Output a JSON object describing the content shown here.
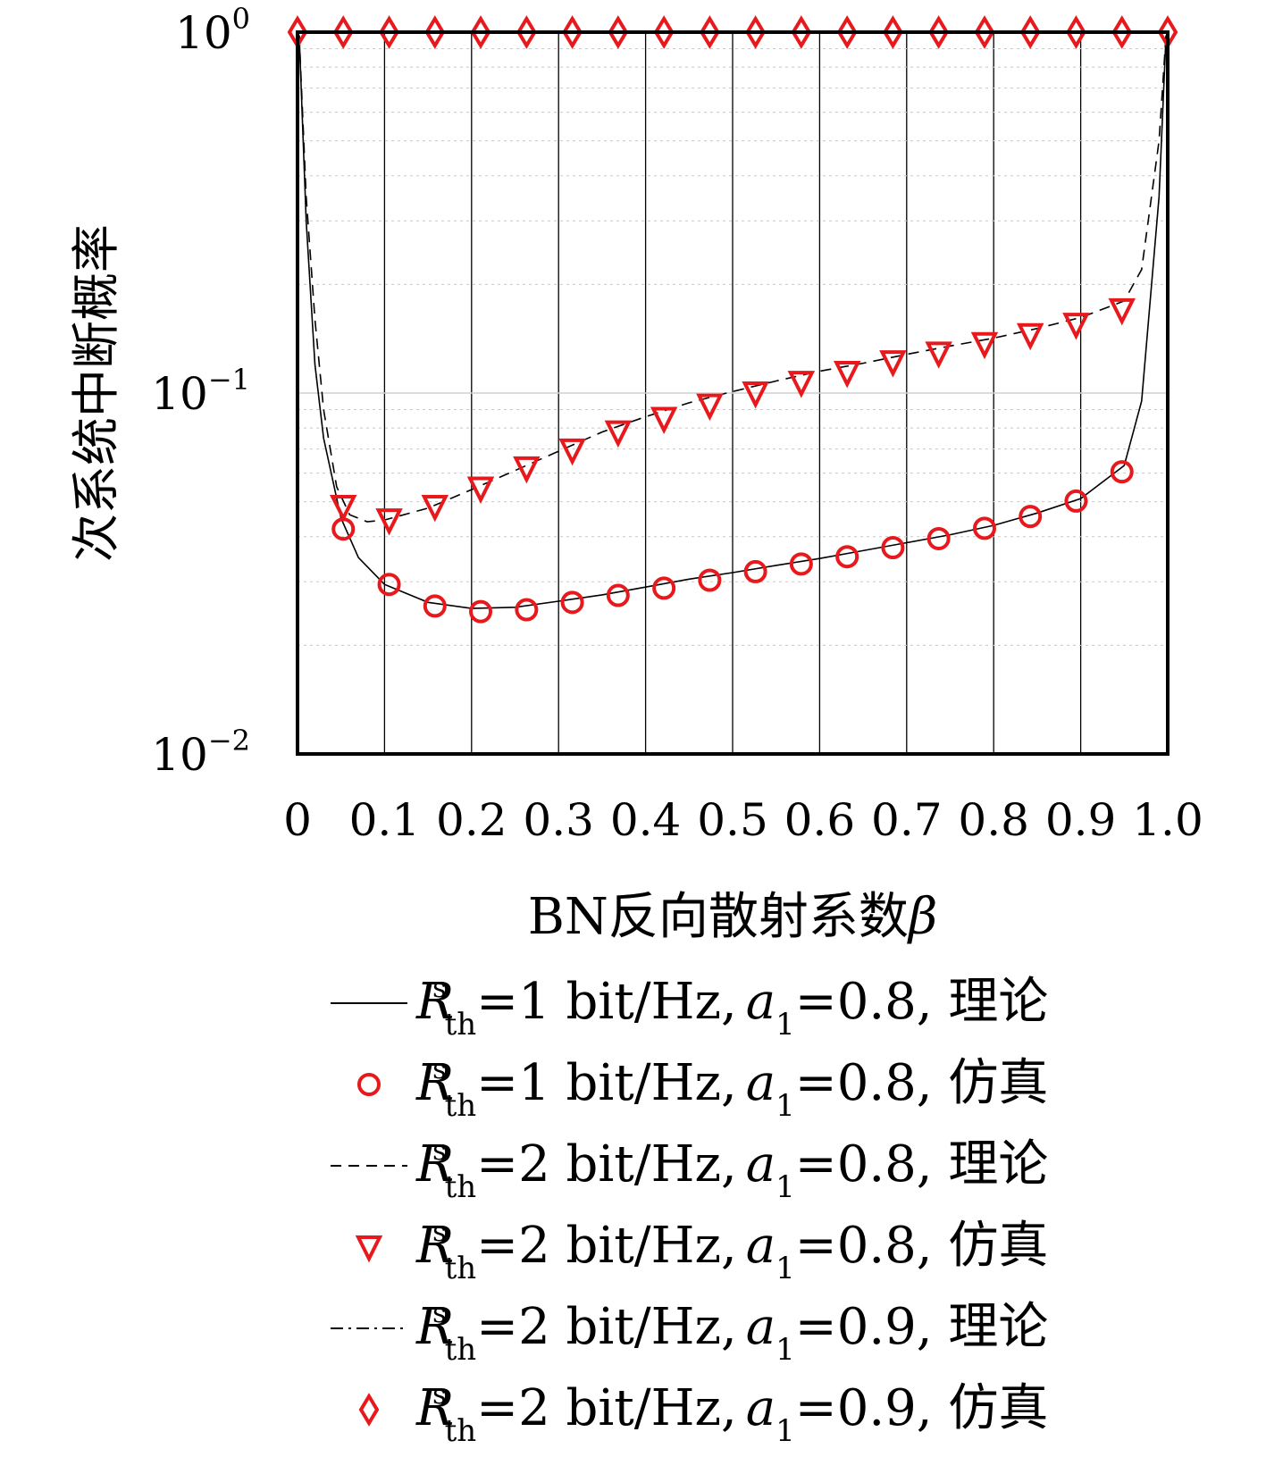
{
  "chart_data": {
    "type": "line",
    "title": "",
    "xlabel": "BN反向散射系数β",
    "ylabel": "次系统中断概率",
    "yscale": "log",
    "xlim": [
      0,
      1.0
    ],
    "ylim": [
      0.01,
      1
    ],
    "grid": "vertical lines at x ticks; dotted horizontal minor lines",
    "x_ticks": [
      "0",
      "0.1",
      "0.2",
      "0.3",
      "0.4",
      "0.5",
      "0.6",
      "0.7",
      "0.8",
      "0.9",
      "1.0"
    ],
    "y_ticks": [
      {
        "base": "10",
        "exp": "0",
        "value": 1
      },
      {
        "base": "10",
        "exp": "−1",
        "value": 0.1
      },
      {
        "base": "10",
        "exp": "−2",
        "value": 0.01
      }
    ],
    "series": [
      {
        "name": "Rsth=1 bit/Hz, a1=0.8, 理论",
        "style": "solid",
        "color": "#000000",
        "points": [
          [
            0.002,
            0.98
          ],
          [
            0.01,
            0.3
          ],
          [
            0.02,
            0.12
          ],
          [
            0.03,
            0.075
          ],
          [
            0.05,
            0.045
          ],
          [
            0.07,
            0.035
          ],
          [
            0.1,
            0.0295
          ],
          [
            0.15,
            0.0263
          ],
          [
            0.2,
            0.0253
          ],
          [
            0.25,
            0.0255
          ],
          [
            0.3,
            0.0265
          ],
          [
            0.35,
            0.0276
          ],
          [
            0.4,
            0.029
          ],
          [
            0.45,
            0.0305
          ],
          [
            0.5,
            0.0318
          ],
          [
            0.55,
            0.0333
          ],
          [
            0.6,
            0.0348
          ],
          [
            0.65,
            0.0366
          ],
          [
            0.7,
            0.0385
          ],
          [
            0.75,
            0.0405
          ],
          [
            0.8,
            0.043
          ],
          [
            0.85,
            0.0465
          ],
          [
            0.9,
            0.051
          ],
          [
            0.95,
            0.063
          ],
          [
            0.97,
            0.095
          ],
          [
            0.99,
            0.35
          ],
          [
            0.998,
            0.98
          ]
        ]
      },
      {
        "name": "Rsth=1 bit/Hz, a1=0.8, 仿真",
        "style": "circle",
        "color": "#e8191c",
        "points": [
          [
            0.0526,
            0.042
          ],
          [
            0.1053,
            0.0295
          ],
          [
            0.1579,
            0.0257
          ],
          [
            0.2105,
            0.0248
          ],
          [
            0.2632,
            0.0251
          ],
          [
            0.3158,
            0.0263
          ],
          [
            0.3684,
            0.0275
          ],
          [
            0.4211,
            0.0288
          ],
          [
            0.4737,
            0.0303
          ],
          [
            0.5263,
            0.032
          ],
          [
            0.5789,
            0.0336
          ],
          [
            0.6316,
            0.0352
          ],
          [
            0.6842,
            0.0373
          ],
          [
            0.7368,
            0.0395
          ],
          [
            0.7895,
            0.0422
          ],
          [
            0.8421,
            0.0455
          ],
          [
            0.8947,
            0.0502
          ],
          [
            0.9474,
            0.0605
          ]
        ]
      },
      {
        "name": "Rsth=2 bit/Hz, a1=0.8, 理论",
        "style": "dashed",
        "color": "#000000",
        "points": [
          [
            0.002,
            0.98
          ],
          [
            0.01,
            0.35
          ],
          [
            0.02,
            0.16
          ],
          [
            0.03,
            0.09
          ],
          [
            0.045,
            0.055
          ],
          [
            0.06,
            0.046
          ],
          [
            0.08,
            0.044
          ],
          [
            0.1,
            0.0445
          ],
          [
            0.15,
            0.048
          ],
          [
            0.2,
            0.054
          ],
          [
            0.25,
            0.061
          ],
          [
            0.3,
            0.069
          ],
          [
            0.35,
            0.078
          ],
          [
            0.4,
            0.086
          ],
          [
            0.45,
            0.094
          ],
          [
            0.5,
            0.101
          ],
          [
            0.55,
            0.108
          ],
          [
            0.6,
            0.115
          ],
          [
            0.65,
            0.121
          ],
          [
            0.7,
            0.128
          ],
          [
            0.75,
            0.135
          ],
          [
            0.8,
            0.142
          ],
          [
            0.85,
            0.151
          ],
          [
            0.9,
            0.162
          ],
          [
            0.95,
            0.18
          ],
          [
            0.97,
            0.22
          ],
          [
            0.99,
            0.5
          ],
          [
            0.998,
            0.98
          ]
        ]
      },
      {
        "name": "Rsth=2 bit/Hz, a1=0.8, 仿真",
        "style": "triangle-down",
        "color": "#e8191c",
        "points": [
          [
            0.0526,
            0.0485
          ],
          [
            0.1053,
            0.0445
          ],
          [
            0.1579,
            0.0485
          ],
          [
            0.2105,
            0.0545
          ],
          [
            0.2632,
            0.062
          ],
          [
            0.3158,
            0.0695
          ],
          [
            0.3684,
            0.078
          ],
          [
            0.4211,
            0.085
          ],
          [
            0.4737,
            0.0925
          ],
          [
            0.5263,
            0.1
          ],
          [
            0.5789,
            0.107
          ],
          [
            0.6316,
            0.114
          ],
          [
            0.6842,
            0.122
          ],
          [
            0.7368,
            0.129
          ],
          [
            0.7895,
            0.137
          ],
          [
            0.8421,
            0.145
          ],
          [
            0.8947,
            0.155
          ],
          [
            0.9474,
            0.17
          ]
        ]
      },
      {
        "name": "Rsth=2 bit/Hz, a1=0.9, 理论",
        "style": "dash-dot",
        "color": "#000000",
        "points": [
          [
            0,
            1
          ],
          [
            1.0,
            1
          ]
        ]
      },
      {
        "name": "Rsth=2 bit/Hz, a1=0.9, 仿真",
        "style": "diamond",
        "color": "#e8191c",
        "points": [
          [
            0,
            1
          ],
          [
            0.0526,
            1
          ],
          [
            0.1053,
            1
          ],
          [
            0.1579,
            1
          ],
          [
            0.2105,
            1
          ],
          [
            0.2632,
            1
          ],
          [
            0.3158,
            1
          ],
          [
            0.3684,
            1
          ],
          [
            0.4211,
            1
          ],
          [
            0.4737,
            1
          ],
          [
            0.5263,
            1
          ],
          [
            0.5789,
            1
          ],
          [
            0.6316,
            1
          ],
          [
            0.6842,
            1
          ],
          [
            0.7368,
            1
          ],
          [
            0.7895,
            1
          ],
          [
            0.8421,
            1
          ],
          [
            0.8947,
            1
          ],
          [
            0.9474,
            1
          ],
          [
            1.0,
            1
          ]
        ]
      }
    ],
    "legend": {
      "placement": "below",
      "entries": [
        {
          "swatch": "solid",
          "R": "R",
          "sup": "s",
          "sub": "th",
          "mid": "=1 bit/Hz,",
          "a": "a",
          "a_sub": "1",
          "tail": "=0.8, 理论"
        },
        {
          "swatch": "circle",
          "R": "R",
          "sup": "s",
          "sub": "th",
          "mid": "=1 bit/Hz,",
          "a": "a",
          "a_sub": "1",
          "tail": "=0.8, 仿真"
        },
        {
          "swatch": "dashed",
          "R": "R",
          "sup": "s",
          "sub": "th",
          "mid": "=2 bit/Hz,",
          "a": "a",
          "a_sub": "1",
          "tail": "=0.8, 理论"
        },
        {
          "swatch": "triangle-down",
          "R": "R",
          "sup": "s",
          "sub": "th",
          "mid": "=2 bit/Hz,",
          "a": "a",
          "a_sub": "1",
          "tail": "=0.8, 仿真"
        },
        {
          "swatch": "dash-dot",
          "R": "R",
          "sup": "s",
          "sub": "th",
          "mid": "=2 bit/Hz,",
          "a": "a",
          "a_sub": "1",
          "tail": "=0.9, 理论"
        },
        {
          "swatch": "diamond",
          "R": "R",
          "sup": "s",
          "sub": "th",
          "mid": "=2 bit/Hz,",
          "a": "a",
          "a_sub": "1",
          "tail": "=0.9, 仿真"
        }
      ]
    }
  }
}
